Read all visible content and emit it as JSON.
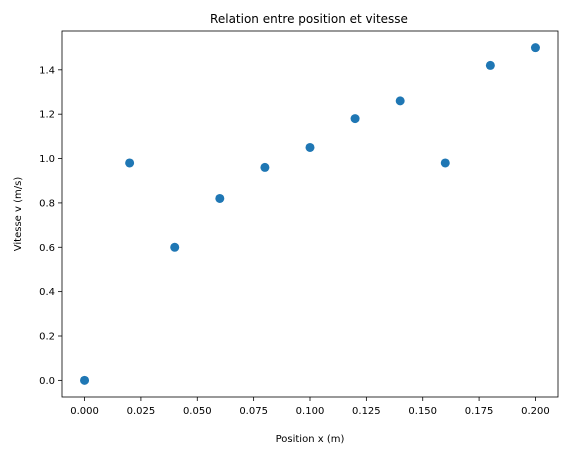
{
  "chart_data": {
    "type": "scatter",
    "title": "Relation entre position et vitesse",
    "xlabel": "Position x (m)",
    "ylabel": "Vitesse v (m/s)",
    "xlim": [
      -0.01,
      0.21
    ],
    "ylim": [
      -0.075,
      1.575
    ],
    "xticks": [
      0.0,
      0.025,
      0.05,
      0.075,
      0.1,
      0.125,
      0.15,
      0.175,
      0.2
    ],
    "xtick_labels": [
      "0.000",
      "0.025",
      "0.050",
      "0.075",
      "0.100",
      "0.125",
      "0.150",
      "0.175",
      "0.200"
    ],
    "yticks": [
      0.0,
      0.2,
      0.4,
      0.6,
      0.8,
      1.0,
      1.2,
      1.4
    ],
    "ytick_labels": [
      "0.0",
      "0.2",
      "0.4",
      "0.6",
      "0.8",
      "1.0",
      "1.2",
      "1.4"
    ],
    "grid": false,
    "marker_color": "#1f77b4",
    "series": [
      {
        "x": [
          0.0,
          0.02,
          0.04,
          0.06,
          0.08,
          0.1,
          0.12,
          0.14,
          0.16,
          0.18,
          0.2
        ],
        "y": [
          0.0,
          0.98,
          0.6,
          0.82,
          0.96,
          1.05,
          1.18,
          1.26,
          0.98,
          1.42,
          1.5
        ]
      }
    ]
  }
}
